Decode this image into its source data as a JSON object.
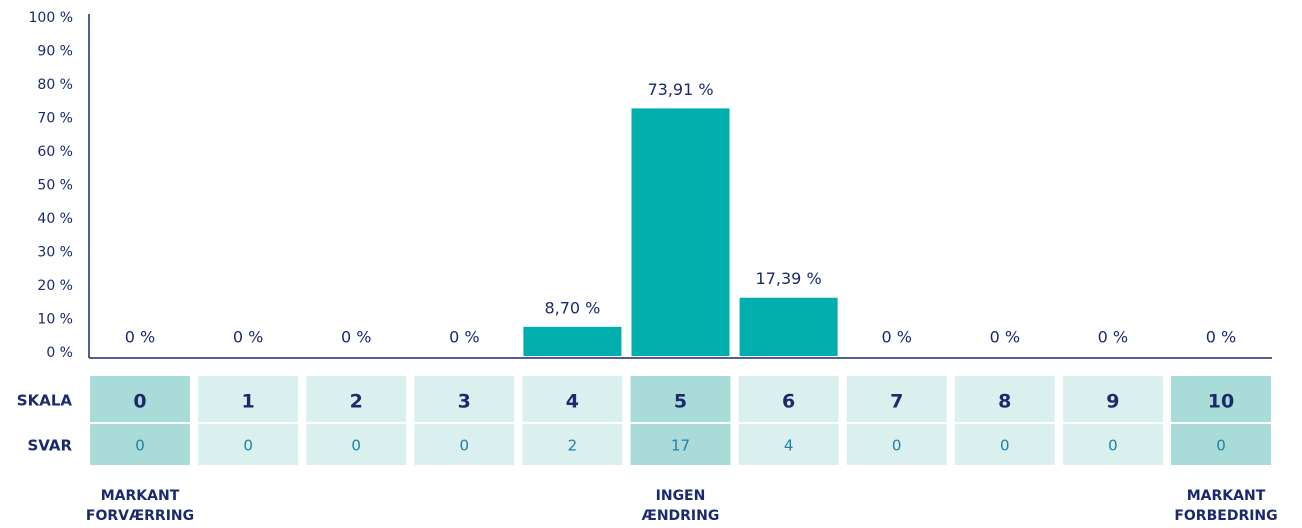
{
  "chart_data": {
    "type": "bar",
    "categories": [
      "0",
      "1",
      "2",
      "3",
      "4",
      "5",
      "6",
      "7",
      "8",
      "9",
      "10"
    ],
    "values": [
      0,
      0,
      0,
      0,
      8.7,
      73.91,
      17.39,
      0,
      0,
      0,
      0
    ],
    "value_labels": [
      "0 %",
      "0 %",
      "0 %",
      "0 %",
      "8,70 %",
      "73,91 %",
      "17,39 %",
      "0 %",
      "0 %",
      "0 %",
      "0 %"
    ],
    "color": "#00aead",
    "ylim": [
      0,
      100
    ],
    "yticks": [
      {
        "value": 0,
        "label": "0 %"
      },
      {
        "value": 10,
        "label": "10 %"
      },
      {
        "value": 20,
        "label": "20 %"
      },
      {
        "value": 30,
        "label": "30 %"
      },
      {
        "value": 40,
        "label": "40 %"
      },
      {
        "value": 50,
        "label": "50 %"
      },
      {
        "value": 60,
        "label": "60 %"
      },
      {
        "value": 70,
        "label": "70 %"
      },
      {
        "value": 80,
        "label": "80 %"
      },
      {
        "value": 90,
        "label": "90 %"
      },
      {
        "value": 100,
        "label": "100 %"
      }
    ],
    "grid": false,
    "scale_label": "SKALA",
    "counts_label": "SVAR",
    "counts": [
      0,
      0,
      0,
      0,
      2,
      17,
      4,
      0,
      0,
      0,
      0
    ],
    "highlight_color": "#a9dcd9",
    "cell_color": "#d9f0ef",
    "highlighted": [
      0,
      5,
      10
    ],
    "category_notes": [
      [
        "MARKANT",
        "FORVÆRRING"
      ],
      null,
      null,
      null,
      null,
      [
        "INGEN",
        "ÆNDRING"
      ],
      null,
      null,
      null,
      null,
      [
        "MARKANT",
        "FORBEDRING"
      ]
    ]
  }
}
